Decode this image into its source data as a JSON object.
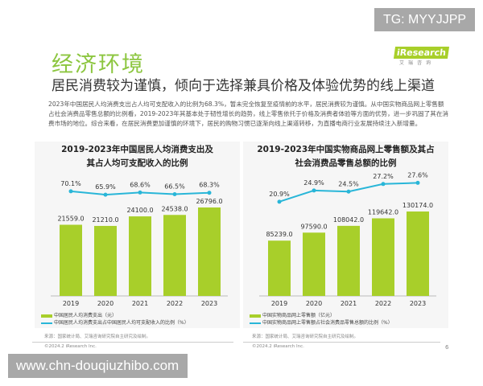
{
  "header": {
    "title": "经济环境",
    "subtitle": "居民消费较为谨慎，倾向于选择兼具价格及体验优势的线上渠道",
    "logo": "iResearch",
    "logo_sub": "艾瑞咨询"
  },
  "watermarks": {
    "tg": "TG: MYYJJPP",
    "site": "www.chn-douqiuzhibo.com"
  },
  "body_text": "2023年中国居民人均消费支出占人均可支配收入的比例为68.3%，暂未完全恢复至疫情前的水平，居民消费较为谨慎。从中国实物商品网上零售额占社会消费品零售总额的比例看，2019-2023年其基本处于韧性增长的趋势，线上零售依托于价格及消费者体验等方面的优势，进一步巩固了其在消费市场的地位。综合来看，在居民消费更加谨慎的环境下，居民的购物习惯已逐渐向线上渠道转移，为直播电商行业发展持续注入新增量。",
  "footer": {
    "source": "来源：国家统计局、艾瑞咨询研究院自主研究及绘制。",
    "copyright": "©2024.2 iResearch Inc.",
    "page": "6"
  },
  "colors": {
    "bar": "#a8cf2a",
    "line": "#29b6d8",
    "title": "#8cc63f"
  },
  "chart_data": [
    {
      "type": "bar+line",
      "title_line1": "2019-2023年中国居民人均消费支出及",
      "title_line2": "其占人均可支配收入的比例",
      "categories": [
        "2019",
        "2020",
        "2021",
        "2022",
        "2023"
      ],
      "series": [
        {
          "name": "中国居民人均消费支出（元）",
          "type": "bar",
          "values": [
            21559.0,
            21210.0,
            24100.0,
            24538.0,
            26796.0
          ],
          "labels": [
            "21559.0",
            "21210.0",
            "24100.0",
            "24538.0",
            "26796.0"
          ]
        },
        {
          "name": "中国居民人均消费支出占中国居民人均可支配收入的比例（%）",
          "type": "line",
          "values": [
            70.1,
            65.9,
            68.6,
            66.5,
            68.3
          ],
          "labels": [
            "70.1%",
            "65.9%",
            "68.6%",
            "66.5%",
            "68.3%"
          ]
        }
      ]
    },
    {
      "type": "bar+line",
      "title_line1": "2019-2023年中国实物商品网上零售额及其占",
      "title_line2": "社会消费品零售总额的比例",
      "categories": [
        "2019",
        "2020",
        "2021",
        "2022",
        "2023"
      ],
      "series": [
        {
          "name": "中国实物商品网上零售额（亿元）",
          "type": "bar",
          "values": [
            85239.0,
            97590.0,
            108042.0,
            119642.0,
            130174.0
          ],
          "labels": [
            "85239.0",
            "97590.0",
            "108042.0",
            "119642.0",
            "130174.0"
          ]
        },
        {
          "name": "中国实物商品网上零售额占社会消费品零售总额的比例（%）",
          "type": "line",
          "values": [
            20.9,
            24.9,
            24.5,
            27.2,
            27.6
          ],
          "labels": [
            "20.9%",
            "24.9%",
            "24.5%",
            "27.2%",
            "27.6%"
          ]
        }
      ]
    }
  ]
}
